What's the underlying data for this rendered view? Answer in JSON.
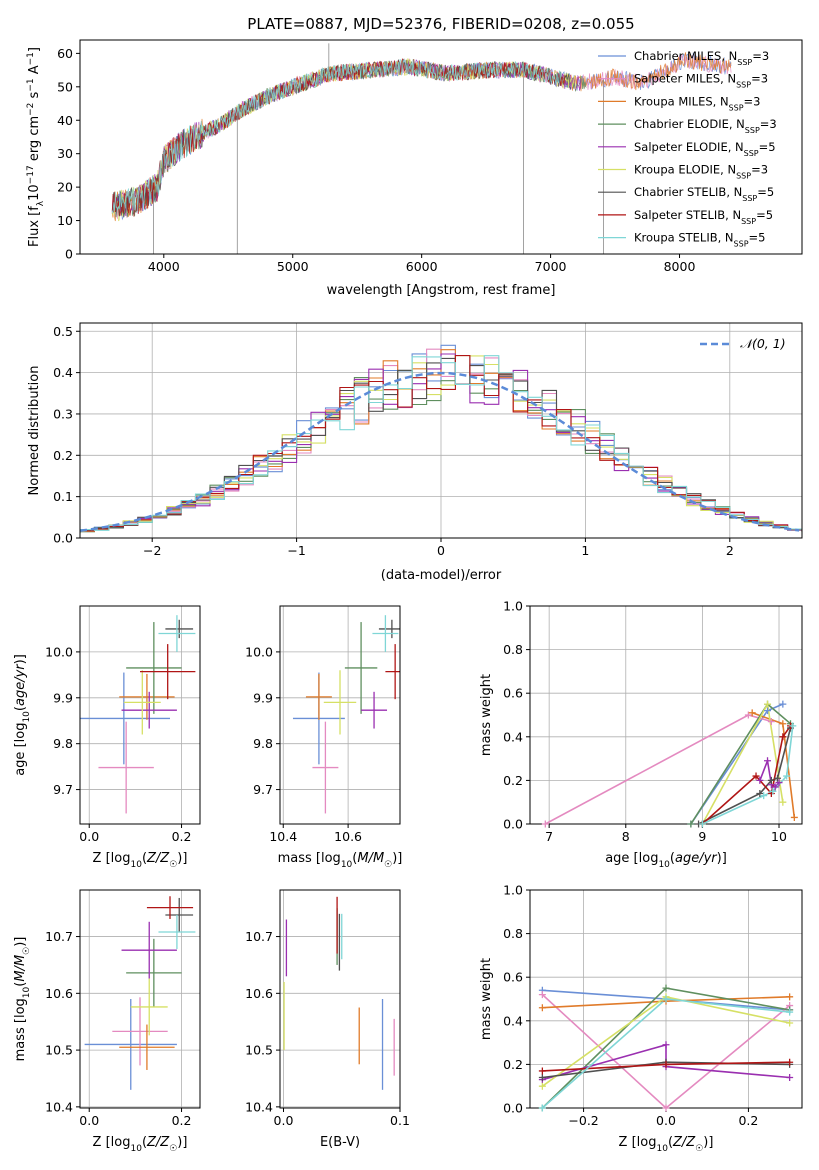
{
  "figure": {
    "title": "PLATE=0887, MJD=52376, FIBERID=0208, z=0.055"
  },
  "models": [
    {
      "name": "Chabrier MILES, N",
      "sub": "SSP",
      "tail": "=3",
      "color": "#6a8fd6"
    },
    {
      "name": "Salpeter MILES, N",
      "sub": "SSP",
      "tail": "=3",
      "color": "#e48ac0"
    },
    {
      "name": "Kroupa MILES, N",
      "sub": "SSP",
      "tail": "=3",
      "color": "#e07b2a"
    },
    {
      "name": "Chabrier ELODIE, N",
      "sub": "SSP",
      "tail": "=3",
      "color": "#5f8f5f"
    },
    {
      "name": "Salpeter ELODIE, N",
      "sub": "SSP",
      "tail": "=5",
      "color": "#9a2fb0"
    },
    {
      "name": "Kroupa ELODIE, N",
      "sub": "SSP",
      "tail": "=3",
      "color": "#d6e065"
    },
    {
      "name": "Chabrier STELIB, N",
      "sub": "SSP",
      "tail": "=5",
      "color": "#505050"
    },
    {
      "name": "Salpeter STELIB, N",
      "sub": "SSP",
      "tail": "=5",
      "color": "#b01515"
    },
    {
      "name": "Kroupa STELIB, N",
      "sub": "SSP",
      "tail": "=5",
      "color": "#7fd6d6"
    }
  ],
  "chart_data": [
    {
      "id": "spectrum",
      "type": "line",
      "xlabel": "wavelength [Angstrom, rest frame]",
      "ylabel": "Flux [f_λ10^-17 erg cm^-2 s^-1 A^-1]",
      "xlim": [
        3350,
        8950
      ],
      "ylim": [
        0,
        64
      ],
      "xticks": [
        4000,
        5000,
        6000,
        7000,
        8000
      ],
      "yticks": [
        0,
        10,
        20,
        30,
        40,
        50,
        60
      ],
      "grid": false,
      "legend": "right",
      "continuum": {
        "x": [
          3600,
          3800,
          3950,
          4000,
          4150,
          4300,
          4450,
          4600,
          4800,
          5000,
          5300,
          5600,
          5900,
          6200,
          6500,
          6800,
          7000,
          7200,
          7400,
          7500,
          7700,
          7900,
          8050,
          8200,
          8400
        ],
        "y": [
          14,
          16,
          20,
          28,
          33,
          36,
          39,
          43,
          47,
          50,
          54,
          55,
          56,
          54,
          55,
          55,
          53,
          51,
          52,
          53,
          51,
          55,
          58,
          57,
          56
        ]
      },
      "spikes": [
        {
          "x": 3920,
          "y": 0
        },
        {
          "x": 4570,
          "y": 0
        },
        {
          "x": 5280,
          "y": 63
        },
        {
          "x": 6790,
          "y": 0
        },
        {
          "x": 7410,
          "y": 0
        }
      ]
    },
    {
      "id": "residuals",
      "type": "line",
      "xlabel": "(data-model)/error",
      "ylabel": "Normed distribution",
      "xlim": [
        -2.5,
        2.5
      ],
      "ylim": [
        0,
        0.52
      ],
      "xticks": [
        -2,
        -1,
        0,
        1,
        2
      ],
      "yticks": [
        0.0,
        0.1,
        0.2,
        0.3,
        0.4,
        0.5
      ],
      "grid": true,
      "legend": "top-right",
      "reference_label": "𝒩(0, 1)",
      "reference_color": "#5b8bd8",
      "bin_width": 0.1,
      "envelope": {
        "mu": 0.0,
        "sigma": 1.0
      }
    },
    {
      "id": "age-vs-z",
      "type": "scatter",
      "xlabel": "Z [log10(Z/Z☉)]",
      "ylabel": "age  [log10(age/yr)]",
      "xlim": [
        -0.02,
        0.24
      ],
      "ylim": [
        9.625,
        10.1
      ],
      "xticks": [
        0.0,
        0.2
      ],
      "yticks": [
        9.7,
        9.8,
        9.9,
        10.0
      ],
      "grid": true,
      "points": [
        {
          "x": 0.075,
          "y": 9.855,
          "xerr": 0.1,
          "yerr": 0.1
        },
        {
          "x": 0.08,
          "y": 9.748,
          "xerr": 0.06,
          "yerr": 0.1
        },
        {
          "x": 0.125,
          "y": 9.902,
          "xerr": 0.06,
          "yerr": 0.05
        },
        {
          "x": 0.14,
          "y": 9.965,
          "xerr": 0.06,
          "yerr": 0.1
        },
        {
          "x": 0.13,
          "y": 9.873,
          "xerr": 0.06,
          "yerr": 0.04
        },
        {
          "x": 0.115,
          "y": 9.89,
          "xerr": 0.04,
          "yerr": 0.07
        },
        {
          "x": 0.195,
          "y": 10.05,
          "xerr": 0.03,
          "yerr": 0.02
        },
        {
          "x": 0.17,
          "y": 9.957,
          "xerr": 0.06,
          "yerr": 0.06
        },
        {
          "x": 0.19,
          "y": 10.04,
          "xerr": 0.04,
          "yerr": 0.04
        }
      ]
    },
    {
      "id": "age-vs-mass",
      "type": "scatter",
      "xlabel": "mass [log10(M/M☉)]",
      "ylabel": "",
      "xlim": [
        10.39,
        10.76
      ],
      "ylim": [
        9.625,
        10.1
      ],
      "xticks": [
        10.4,
        10.6
      ],
      "yticks": [
        9.7,
        9.8,
        9.9,
        10.0
      ],
      "grid": true,
      "points": [
        {
          "x": 10.51,
          "y": 9.855,
          "xerr": 0.08,
          "yerr": 0.1
        },
        {
          "x": 10.53,
          "y": 9.748,
          "xerr": 0.04,
          "yerr": 0.1
        },
        {
          "x": 10.51,
          "y": 9.902,
          "xerr": 0.04,
          "yerr": 0.05
        },
        {
          "x": 10.64,
          "y": 9.965,
          "xerr": 0.05,
          "yerr": 0.1
        },
        {
          "x": 10.68,
          "y": 9.873,
          "xerr": 0.04,
          "yerr": 0.04
        },
        {
          "x": 10.575,
          "y": 9.89,
          "xerr": 0.05,
          "yerr": 0.07
        },
        {
          "x": 10.735,
          "y": 10.05,
          "xerr": 0.04,
          "yerr": 0.02
        },
        {
          "x": 10.745,
          "y": 9.957,
          "xerr": 0.03,
          "yerr": 0.06
        },
        {
          "x": 10.715,
          "y": 10.04,
          "xerr": 0.04,
          "yerr": 0.04
        }
      ]
    },
    {
      "id": "mass-weight-vs-age",
      "type": "line",
      "xlabel": "age  [log10(age/yr)]",
      "ylabel": "mass weight",
      "xlim": [
        6.75,
        10.3
      ],
      "ylim": [
        0,
        1.0
      ],
      "xticks": [
        7,
        8,
        9,
        10
      ],
      "yticks": [
        0.0,
        0.2,
        0.4,
        0.6,
        0.8,
        1.0
      ],
      "grid": true,
      "lines": [
        {
          "x": [
            8.85,
            9.85,
            10.05
          ],
          "y": [
            0.0,
            0.52,
            0.55
          ]
        },
        {
          "x": [
            6.95,
            9.6,
            9.9
          ],
          "y": [
            0.0,
            0.5,
            0.47
          ]
        },
        {
          "x": [
            9.65,
            10.05,
            10.2
          ],
          "y": [
            0.51,
            0.46,
            0.03
          ]
        },
        {
          "x": [
            8.85,
            9.85,
            10.15
          ],
          "y": [
            0.0,
            0.55,
            0.46
          ]
        },
        {
          "x": [
            9.75,
            9.85,
            9.9,
            9.95,
            10.0
          ],
          "y": [
            0.2,
            0.29,
            0.18,
            0.17,
            0.19
          ]
        },
        {
          "x": [
            9.0,
            9.85,
            10.05
          ],
          "y": [
            0.0,
            0.55,
            0.1
          ]
        },
        {
          "x": [
            8.95,
            9.75,
            9.9,
            9.98,
            10.15
          ],
          "y": [
            0.0,
            0.14,
            0.2,
            0.21,
            0.44
          ]
        },
        {
          "x": [
            9.0,
            9.7,
            9.9,
            10.05,
            10.15
          ],
          "y": [
            0.0,
            0.22,
            0.14,
            0.4,
            0.45
          ]
        },
        {
          "x": [
            9.0,
            9.8,
            9.92,
            10.1,
            10.18
          ],
          "y": [
            0.0,
            0.13,
            0.15,
            0.22,
            0.45
          ]
        }
      ]
    },
    {
      "id": "mass-vs-z",
      "type": "scatter",
      "xlabel": "Z [log10(Z/Z☉)]",
      "ylabel": "mass [log10(M/M☉)]",
      "xlim": [
        -0.02,
        0.24
      ],
      "ylim": [
        10.398,
        10.782
      ],
      "xticks": [
        0.0,
        0.2
      ],
      "yticks": [
        10.4,
        10.5,
        10.6,
        10.7
      ],
      "grid": true,
      "points": [
        {
          "x": 0.09,
          "y": 10.51,
          "xerr": 0.1,
          "yerr": 0.08
        },
        {
          "x": 0.11,
          "y": 10.533,
          "xerr": 0.06,
          "yerr": 0.06
        },
        {
          "x": 0.125,
          "y": 10.505,
          "xerr": 0.06,
          "yerr": 0.04
        },
        {
          "x": 0.14,
          "y": 10.636,
          "xerr": 0.06,
          "yerr": 0.06
        },
        {
          "x": 0.13,
          "y": 10.676,
          "xerr": 0.06,
          "yerr": 0.05
        },
        {
          "x": 0.13,
          "y": 10.576,
          "xerr": 0.04,
          "yerr": 0.05
        },
        {
          "x": 0.195,
          "y": 10.738,
          "xerr": 0.03,
          "yerr": 0.03
        },
        {
          "x": 0.175,
          "y": 10.751,
          "xerr": 0.05,
          "yerr": 0.02
        },
        {
          "x": 0.19,
          "y": 10.708,
          "xerr": 0.04,
          "yerr": 0.03
        }
      ]
    },
    {
      "id": "mass-vs-ebv",
      "type": "scatter",
      "xlabel": "E(B-V)",
      "ylabel": "",
      "xlim": [
        -0.003,
        0.1
      ],
      "ylim": [
        10.398,
        10.782
      ],
      "xticks": [
        0.0,
        0.1
      ],
      "yticks": [
        10.4,
        10.5,
        10.6,
        10.7
      ],
      "grid": true,
      "points": [
        {
          "x": 0.085,
          "y": 10.51,
          "xerr": 0.0,
          "yerr": 0.08
        },
        {
          "x": 0.095,
          "y": 10.505,
          "xerr": 0.0,
          "yerr": 0.05
        },
        {
          "x": 0.065,
          "y": 10.525,
          "xerr": 0.0,
          "yerr": 0.05
        },
        {
          "x": 0.046,
          "y": 10.7,
          "xerr": 0.0,
          "yerr": 0.05
        },
        {
          "x": 0.0025,
          "y": 10.68,
          "xerr": 0.0,
          "yerr": 0.05
        },
        {
          "x": 0.0005,
          "y": 10.56,
          "xerr": 0.0,
          "yerr": 0.06
        },
        {
          "x": 0.048,
          "y": 10.69,
          "xerr": 0.0,
          "yerr": 0.05
        },
        {
          "x": 0.046,
          "y": 10.72,
          "xerr": 0.0,
          "yerr": 0.05
        },
        {
          "x": 0.05,
          "y": 10.7,
          "xerr": 0.0,
          "yerr": 0.04
        }
      ]
    },
    {
      "id": "mass-weight-vs-z",
      "type": "line",
      "xlabel": "Z [log10(Z/Z☉)]",
      "ylabel": "mass weight",
      "xlim": [
        -0.33,
        0.33
      ],
      "ylim": [
        0,
        1.0
      ],
      "xticks": [
        -0.2,
        0.0,
        0.2
      ],
      "yticks": [
        0.0,
        0.2,
        0.4,
        0.6,
        0.8,
        1.0
      ],
      "grid": true,
      "lines": [
        {
          "x": [
            -0.3,
            0.0,
            0.3
          ],
          "y": [
            0.54,
            0.5,
            0.45
          ]
        },
        {
          "x": [
            -0.3,
            0.0,
            0.3
          ],
          "y": [
            0.52,
            0.0,
            0.47
          ]
        },
        {
          "x": [
            -0.3,
            0.0,
            0.3
          ],
          "y": [
            0.46,
            0.49,
            0.51
          ]
        },
        {
          "x": [
            -0.3,
            0.0,
            0.3
          ],
          "y": [
            0.0,
            0.55,
            0.45
          ]
        },
        {
          "x": [
            -0.3,
            0.0,
            0.0,
            0.3
          ],
          "y": [
            0.13,
            0.29,
            0.19,
            0.14
          ]
        },
        {
          "x": [
            -0.3,
            0.0,
            0.3
          ],
          "y": [
            0.1,
            0.51,
            0.39
          ]
        },
        {
          "x": [
            -0.3,
            0.0,
            0.3
          ],
          "y": [
            0.14,
            0.21,
            0.2
          ]
        },
        {
          "x": [
            -0.3,
            0.0,
            0.3
          ],
          "y": [
            0.17,
            0.2,
            0.21
          ]
        },
        {
          "x": [
            -0.3,
            0.0,
            0.3
          ],
          "y": [
            0.0,
            0.5,
            0.44
          ]
        }
      ]
    }
  ]
}
